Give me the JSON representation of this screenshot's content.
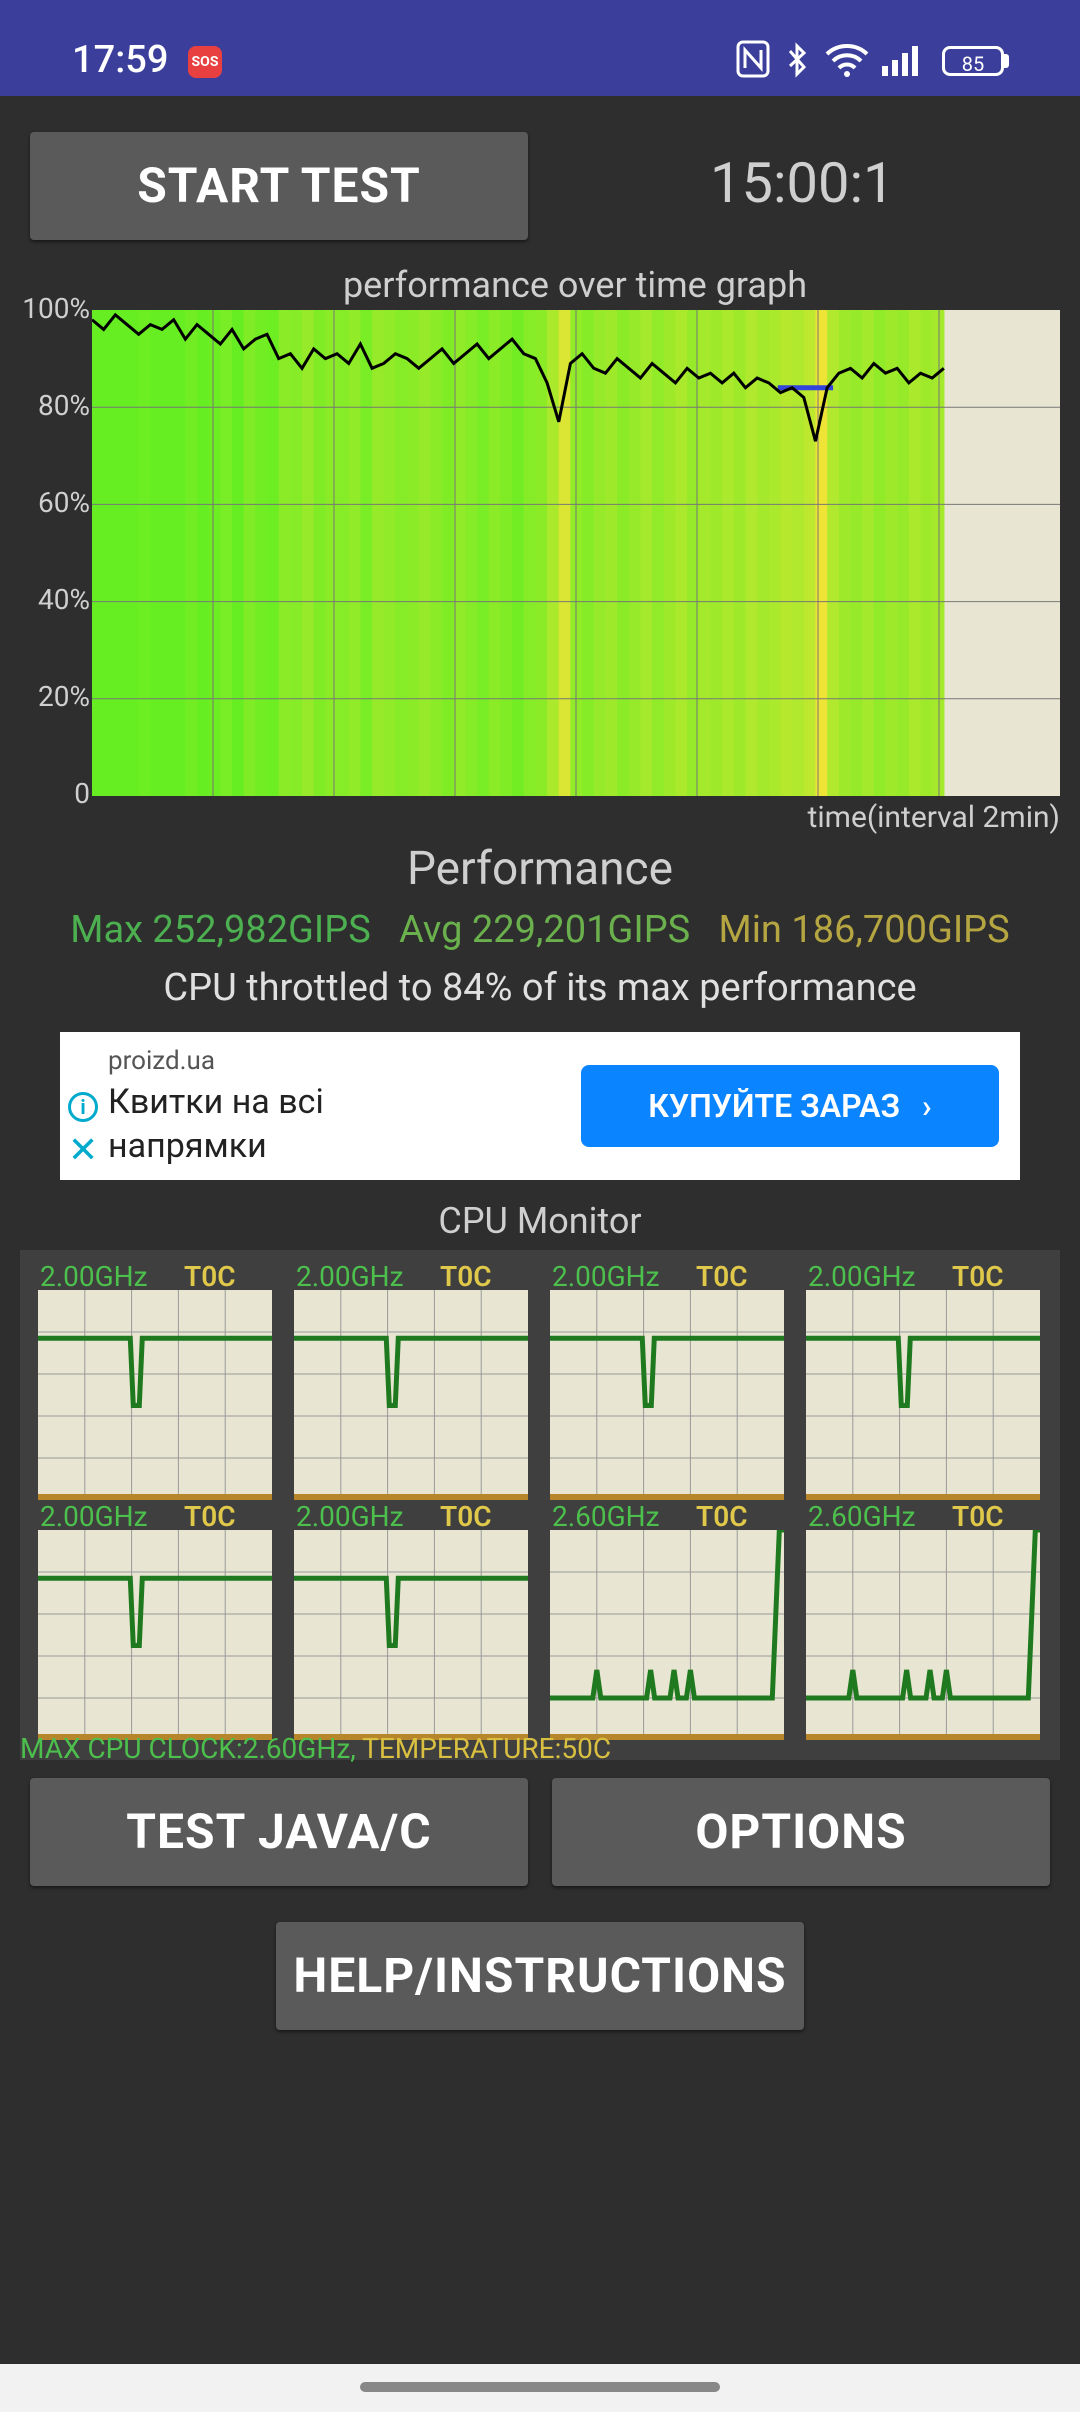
{
  "status_bar": {
    "time": "17:59",
    "sos": "SOS",
    "battery": "85",
    "icons": [
      "nfc-icon",
      "bluetooth-icon",
      "wifi-icon",
      "signal-icon"
    ]
  },
  "controls": {
    "start_label": "START TEST",
    "timer": "15:00:1"
  },
  "graph": {
    "title": "performance over time graph",
    "y_ticks": [
      "100%",
      "80%",
      "60%",
      "40%",
      "20%",
      "0"
    ],
    "x_caption": "time(interval 2min)"
  },
  "chart_data": {
    "type": "line",
    "title": "performance over time graph",
    "xlabel": "time(interval 2min)",
    "ylabel": "",
    "ylim": [
      0,
      100
    ],
    "x_range_fraction_filled": 0.88,
    "series": [
      {
        "values": [
          98,
          96,
          99,
          97,
          95,
          97,
          96,
          98,
          94,
          97,
          95,
          93,
          96,
          92,
          94,
          95,
          90,
          91,
          88,
          92,
          90,
          91,
          89,
          93,
          88,
          89,
          91,
          90,
          88,
          90,
          92,
          89,
          91,
          93,
          90,
          92,
          94,
          91,
          90,
          85,
          77,
          89,
          91,
          88,
          87,
          90,
          88,
          86,
          89,
          87,
          85,
          88,
          86,
          87,
          85,
          87,
          84,
          86,
          85,
          83,
          84,
          82,
          73,
          84,
          87,
          88,
          86,
          89,
          87,
          88,
          85,
          87,
          86,
          88
        ]
      }
    ],
    "avg_line_value": 84,
    "grid": true,
    "colors": {
      "background": "#e8e6d2",
      "fill_high": "#66ee22",
      "fill_low": "#eeee44",
      "line": "#000000",
      "avg_marker": "#3344dd"
    }
  },
  "performance": {
    "heading": "Performance",
    "max": "Max 252,982GIPS",
    "avg": "Avg 229,201GIPS",
    "min": "Min 186,700GIPS",
    "throttle": "CPU throttled to 84% of its max performance",
    "colors": {
      "max": "#4caf50",
      "avg": "#6ab04c",
      "min": "#b5a642"
    }
  },
  "ad": {
    "source": "proizd.ua",
    "text": "Квитки на всі напрямки",
    "cta": "КУПУЙТЕ ЗАРАЗ"
  },
  "cpu_monitor": {
    "title": "CPU Monitor",
    "cores": [
      {
        "freq": "2.00GHz",
        "temp": "T0C",
        "level": 0.77,
        "dip_at": 0.42,
        "dip_level": 0.45
      },
      {
        "freq": "2.00GHz",
        "temp": "T0C",
        "level": 0.77,
        "dip_at": 0.42,
        "dip_level": 0.45
      },
      {
        "freq": "2.00GHz",
        "temp": "T0C",
        "level": 0.77,
        "dip_at": 0.42,
        "dip_level": 0.45
      },
      {
        "freq": "2.00GHz",
        "temp": "T0C",
        "level": 0.77,
        "dip_at": 0.42,
        "dip_level": 0.45
      },
      {
        "freq": "2.00GHz",
        "temp": "T0C",
        "level": 0.77,
        "dip_at": 0.42,
        "dip_level": 0.45
      },
      {
        "freq": "2.00GHz",
        "temp": "T0C",
        "level": 0.77,
        "dip_at": 0.42,
        "dip_level": 0.45
      },
      {
        "freq": "2.60GHz",
        "temp": "T0C",
        "level": 0.2,
        "spikes": [
          0.2,
          0.43,
          0.53,
          0.6
        ],
        "end_level": 1.0
      },
      {
        "freq": "2.60GHz",
        "temp": "T0C",
        "level": 0.2,
        "spikes": [
          0.2,
          0.43,
          0.53,
          0.6
        ],
        "end_level": 1.0
      }
    ],
    "summary_freq": "MAX CPU CLOCK:2.60GHz,",
    "summary_temp": " TEMPERATURE:50C"
  },
  "buttons": {
    "test_javac": "TEST JAVA/C",
    "options": "OPTIONS",
    "help": "HELP/INSTRUCTIONS"
  }
}
